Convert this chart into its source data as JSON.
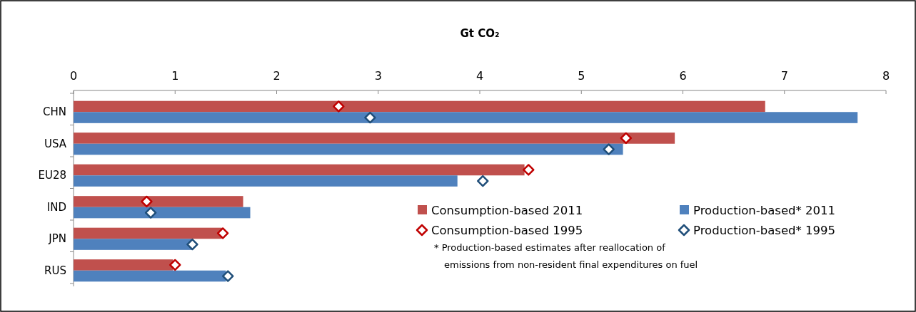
{
  "chart_data": {
    "type": "bar",
    "orientation": "horizontal",
    "xlabel": "Gt CO₂",
    "categories": [
      "CHN",
      "USA",
      "EU28",
      "IND",
      "JPN",
      "RUS"
    ],
    "series": [
      {
        "name": "Consumption-based 2011",
        "color": "#c0504d",
        "values": [
          6.81,
          5.92,
          4.44,
          1.67,
          1.46,
          0.98
        ]
      },
      {
        "name": "Production-based* 2011",
        "color": "#4f81bd",
        "values": [
          7.72,
          5.41,
          3.78,
          1.74,
          1.16,
          1.5
        ]
      },
      {
        "name": "Consumption-based 1995",
        "type": "scatter",
        "marker": "diamond",
        "color": "#c00000",
        "values": [
          2.61,
          5.44,
          4.48,
          0.72,
          1.47,
          1.0
        ]
      },
      {
        "name": "Production-based* 1995",
        "type": "scatter",
        "marker": "diamond",
        "color": "#1f4e79",
        "values": [
          2.92,
          5.27,
          4.03,
          0.76,
          1.17,
          1.52
        ]
      }
    ],
    "xlim": [
      0,
      8
    ],
    "xticks": [
      0,
      1,
      2,
      3,
      4,
      5,
      6,
      7,
      8
    ],
    "legend": "bottom right",
    "annotations": [
      "* Production-based estimates after reallocation of emissions from non-resident final expenditures on fuel"
    ]
  }
}
